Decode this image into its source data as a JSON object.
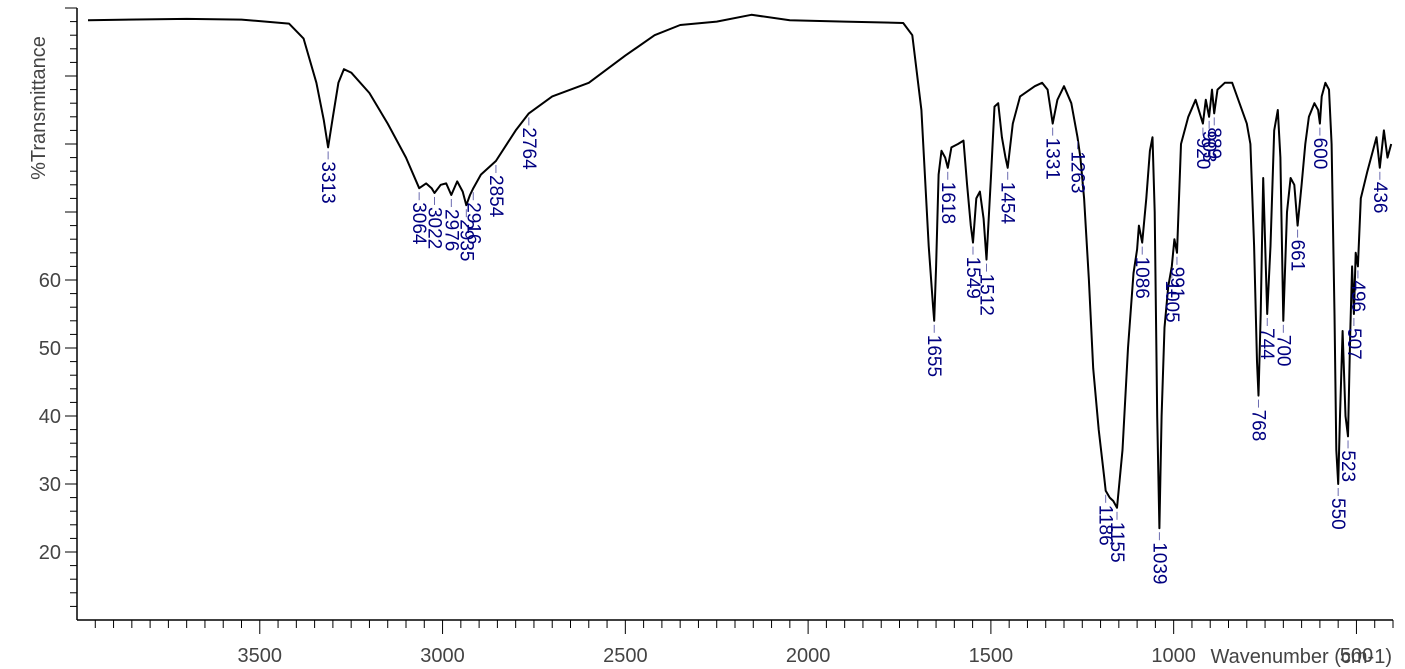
{
  "chart_data": {
    "type": "line",
    "title": "",
    "xlabel": "Wavenumber (cm-1)",
    "ylabel": "%Transmittance",
    "xlim": [
      4000,
      400
    ],
    "x_reversed": true,
    "ylim": [
      10,
      100
    ],
    "grid": false,
    "legend": "none",
    "x_tick_labels": [
      3500,
      3000,
      2500,
      2000,
      1500,
      1000,
      500
    ],
    "x_minor_step": 50,
    "y_tick_labels": [
      20,
      30,
      40,
      50,
      60
    ],
    "y_minor_step": 2,
    "line_color": "#000000",
    "label_color": "#000080",
    "series": [
      {
        "points": [
          [
            3970,
            98.2
          ],
          [
            3700,
            98.4
          ],
          [
            3550,
            98.3
          ],
          [
            3420,
            97.7
          ],
          [
            3380,
            95.5
          ],
          [
            3345,
            89.0
          ],
          [
            3325,
            83.5
          ],
          [
            3313,
            79.5
          ],
          [
            3300,
            84.0
          ],
          [
            3285,
            89.0
          ],
          [
            3270,
            91.0
          ],
          [
            3250,
            90.5
          ],
          [
            3200,
            87.5
          ],
          [
            3150,
            83.0
          ],
          [
            3100,
            78.0
          ],
          [
            3064,
            73.5
          ],
          [
            3045,
            74.2
          ],
          [
            3030,
            73.5
          ],
          [
            3022,
            72.8
          ],
          [
            3005,
            74.0
          ],
          [
            2990,
            74.2
          ],
          [
            2976,
            72.5
          ],
          [
            2960,
            74.5
          ],
          [
            2945,
            73.0
          ],
          [
            2935,
            71.0
          ],
          [
            2925,
            72.5
          ],
          [
            2916,
            73.5
          ],
          [
            2895,
            75.5
          ],
          [
            2854,
            77.5
          ],
          [
            2800,
            82.0
          ],
          [
            2764,
            84.5
          ],
          [
            2700,
            87.0
          ],
          [
            2600,
            89.0
          ],
          [
            2500,
            93.0
          ],
          [
            2420,
            96.0
          ],
          [
            2350,
            97.5
          ],
          [
            2250,
            98.0
          ],
          [
            2155,
            99.0
          ],
          [
            2050,
            98.2
          ],
          [
            1900,
            98.0
          ],
          [
            1740,
            97.8
          ],
          [
            1715,
            96.0
          ],
          [
            1690,
            85.0
          ],
          [
            1670,
            65.0
          ],
          [
            1658,
            56.0
          ],
          [
            1655,
            54.0
          ],
          [
            1650,
            62.0
          ],
          [
            1643,
            75.5
          ],
          [
            1635,
            79.0
          ],
          [
            1625,
            78.0
          ],
          [
            1618,
            76.5
          ],
          [
            1608,
            79.5
          ],
          [
            1590,
            80.0
          ],
          [
            1575,
            80.5
          ],
          [
            1565,
            74.0
          ],
          [
            1555,
            68.0
          ],
          [
            1549,
            65.5
          ],
          [
            1540,
            72.0
          ],
          [
            1530,
            73.0
          ],
          [
            1520,
            69.0
          ],
          [
            1512,
            63.0
          ],
          [
            1500,
            75.0
          ],
          [
            1490,
            85.5
          ],
          [
            1480,
            86.0
          ],
          [
            1470,
            81.0
          ],
          [
            1460,
            78.0
          ],
          [
            1454,
            76.5
          ],
          [
            1440,
            83.0
          ],
          [
            1420,
            87.0
          ],
          [
            1380,
            88.5
          ],
          [
            1360,
            89.0
          ],
          [
            1345,
            88.0
          ],
          [
            1331,
            83.0
          ],
          [
            1318,
            86.5
          ],
          [
            1300,
            88.5
          ],
          [
            1280,
            86.0
          ],
          [
            1263,
            81.0
          ],
          [
            1255,
            78.0
          ],
          [
            1245,
            72.0
          ],
          [
            1232,
            60.0
          ],
          [
            1220,
            47.0
          ],
          [
            1205,
            38.0
          ],
          [
            1190,
            31.0
          ],
          [
            1186,
            29.0
          ],
          [
            1175,
            28.0
          ],
          [
            1165,
            27.5
          ],
          [
            1155,
            26.5
          ],
          [
            1140,
            35.0
          ],
          [
            1125,
            50.0
          ],
          [
            1110,
            61.0
          ],
          [
            1100,
            64.5
          ],
          [
            1095,
            68.0
          ],
          [
            1086,
            65.5
          ],
          [
            1075,
            72.0
          ],
          [
            1065,
            79.0
          ],
          [
            1058,
            81.0
          ],
          [
            1052,
            70.0
          ],
          [
            1045,
            40.0
          ],
          [
            1039,
            23.5
          ],
          [
            1033,
            40.0
          ],
          [
            1025,
            53.0
          ],
          [
            1015,
            59.0
          ],
          [
            1005,
            62.0
          ],
          [
            998,
            66.0
          ],
          [
            991,
            64.0
          ],
          [
            980,
            80.0
          ],
          [
            960,
            84.0
          ],
          [
            940,
            86.5
          ],
          [
            920,
            83.0
          ],
          [
            912,
            86.5
          ],
          [
            903,
            84.0
          ],
          [
            895,
            88.0
          ],
          [
            889,
            84.5
          ],
          [
            880,
            88.0
          ],
          [
            860,
            89.0
          ],
          [
            840,
            89.0
          ],
          [
            820,
            86.0
          ],
          [
            800,
            83.0
          ],
          [
            790,
            80.0
          ],
          [
            780,
            65.0
          ],
          [
            772,
            48.0
          ],
          [
            768,
            43.0
          ],
          [
            762,
            55.0
          ],
          [
            755,
            75.0
          ],
          [
            748,
            62.0
          ],
          [
            744,
            55.0
          ],
          [
            735,
            65.0
          ],
          [
            725,
            82.0
          ],
          [
            715,
            85.0
          ],
          [
            708,
            78.0
          ],
          [
            700,
            54.0
          ],
          [
            690,
            70.0
          ],
          [
            680,
            75.0
          ],
          [
            670,
            74.0
          ],
          [
            661,
            68.0
          ],
          [
            650,
            74.0
          ],
          [
            640,
            80.0
          ],
          [
            630,
            84.0
          ],
          [
            615,
            86.0
          ],
          [
            605,
            85.0
          ],
          [
            600,
            83.0
          ],
          [
            595,
            87.0
          ],
          [
            585,
            89.0
          ],
          [
            575,
            88.0
          ],
          [
            568,
            80.0
          ],
          [
            560,
            55.0
          ],
          [
            555,
            35.0
          ],
          [
            550,
            30.0
          ],
          [
            545,
            40.0
          ],
          [
            538,
            52.5
          ],
          [
            530,
            40.0
          ],
          [
            523,
            37.0
          ],
          [
            517,
            52.0
          ],
          [
            512,
            62.0
          ],
          [
            507,
            55.0
          ],
          [
            502,
            64.0
          ],
          [
            496,
            62.0
          ],
          [
            488,
            72.0
          ],
          [
            470,
            76.0
          ],
          [
            455,
            79.0
          ],
          [
            445,
            81.0
          ],
          [
            436,
            76.5
          ],
          [
            425,
            82.0
          ],
          [
            415,
            78.0
          ],
          [
            405,
            80.0
          ]
        ]
      }
    ],
    "peak_labels": [
      {
        "x": 3313,
        "y": 79.5,
        "text": "3313"
      },
      {
        "x": 3064,
        "y": 73.5,
        "text": "3064"
      },
      {
        "x": 3022,
        "y": 72.8,
        "text": "3022"
      },
      {
        "x": 2976,
        "y": 72.5,
        "text": "2976"
      },
      {
        "x": 2935,
        "y": 71.0,
        "text": "2935"
      },
      {
        "x": 2916,
        "y": 73.5,
        "text": "2916"
      },
      {
        "x": 2854,
        "y": 77.5,
        "text": "2854"
      },
      {
        "x": 2764,
        "y": 84.5,
        "text": "2764"
      },
      {
        "x": 1655,
        "y": 54.0,
        "text": "1655"
      },
      {
        "x": 1618,
        "y": 76.5,
        "text": "1618"
      },
      {
        "x": 1549,
        "y": 65.5,
        "text": "1549"
      },
      {
        "x": 1512,
        "y": 63.0,
        "text": "1512"
      },
      {
        "x": 1454,
        "y": 76.5,
        "text": "1454"
      },
      {
        "x": 1331,
        "y": 83.0,
        "text": "1331"
      },
      {
        "x": 1263,
        "y": 81.0,
        "text": "1263"
      },
      {
        "x": 1186,
        "y": 29.0,
        "text": "1186"
      },
      {
        "x": 1155,
        "y": 26.5,
        "text": "1155"
      },
      {
        "x": 1086,
        "y": 65.5,
        "text": "1086"
      },
      {
        "x": 1039,
        "y": 23.5,
        "text": "1039"
      },
      {
        "x": 1005,
        "y": 62.0,
        "text": "1005"
      },
      {
        "x": 991,
        "y": 64.0,
        "text": "991"
      },
      {
        "x": 920,
        "y": 83.0,
        "text": "920"
      },
      {
        "x": 903,
        "y": 84.0,
        "text": "903"
      },
      {
        "x": 889,
        "y": 84.5,
        "text": "889"
      },
      {
        "x": 768,
        "y": 43.0,
        "text": "768"
      },
      {
        "x": 744,
        "y": 55.0,
        "text": "744"
      },
      {
        "x": 700,
        "y": 54.0,
        "text": "700"
      },
      {
        "x": 661,
        "y": 68.0,
        "text": "661"
      },
      {
        "x": 600,
        "y": 83.0,
        "text": "600"
      },
      {
        "x": 550,
        "y": 30.0,
        "text": "550"
      },
      {
        "x": 523,
        "y": 37.0,
        "text": "523"
      },
      {
        "x": 507,
        "y": 55.0,
        "text": "507"
      },
      {
        "x": 496,
        "y": 62.0,
        "text": "496"
      },
      {
        "x": 436,
        "y": 76.5,
        "text": "436"
      }
    ]
  }
}
